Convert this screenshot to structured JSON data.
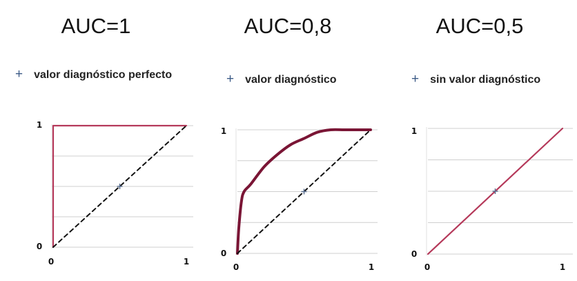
{
  "chart_data": [
    {
      "type": "line",
      "title": "AUC=1",
      "subtitle": "valor diagnóstico perfecto",
      "xlim": [
        0,
        1
      ],
      "ylim": [
        0,
        1
      ],
      "x_ticks": [
        "0",
        "1"
      ],
      "y_ticks": [
        "0",
        "1"
      ],
      "grid": true,
      "series": [
        {
          "color": "#b5395a",
          "style": "solid",
          "x": [
            0.0,
            0.0,
            1.0
          ],
          "y": [
            0.0,
            1.0,
            1.0
          ]
        },
        {
          "color": "#111111",
          "style": "dashed",
          "x": [
            0.0,
            1.0
          ],
          "y": [
            0.0,
            1.0
          ]
        }
      ],
      "marker": {
        "symbol": "+",
        "x": 0.5,
        "y": 0.5,
        "color": "#5a6f8f"
      }
    },
    {
      "type": "line",
      "title": "AUC=0,8",
      "subtitle": "valor diagnóstico",
      "xlim": [
        0,
        1
      ],
      "ylim": [
        0,
        1
      ],
      "x_ticks": [
        "0",
        "1"
      ],
      "y_ticks": [
        "0",
        "1"
      ],
      "grid": true,
      "series": [
        {
          "color": "#7a1535",
          "style": "solid",
          "x": [
            0.0,
            0.01,
            0.03,
            0.05,
            0.1,
            0.2,
            0.3,
            0.4,
            0.5,
            0.6,
            0.7,
            0.8,
            0.9,
            1.0
          ],
          "y": [
            0.0,
            0.2,
            0.42,
            0.5,
            0.56,
            0.7,
            0.8,
            0.88,
            0.93,
            0.98,
            1.0,
            1.0,
            1.0,
            1.0
          ]
        },
        {
          "color": "#111111",
          "style": "dashed",
          "x": [
            0.0,
            1.0
          ],
          "y": [
            0.0,
            1.0
          ]
        }
      ],
      "marker": {
        "symbol": "+",
        "x": 0.5,
        "y": 0.5,
        "color": "#5a6f8f"
      }
    },
    {
      "type": "line",
      "title": "AUC=0,5",
      "subtitle": "sin valor diagnóstico",
      "xlim": [
        0,
        1
      ],
      "ylim": [
        0,
        1
      ],
      "x_ticks": [
        "0",
        "1"
      ],
      "y_ticks": [
        "0",
        "1"
      ],
      "grid": true,
      "series": [
        {
          "color": "#b5395a",
          "style": "solid",
          "x": [
            0.0,
            1.0
          ],
          "y": [
            0.0,
            1.0
          ]
        }
      ],
      "marker": {
        "symbol": "+",
        "x": 0.5,
        "y": 0.5,
        "color": "#5a6f8f"
      }
    }
  ]
}
